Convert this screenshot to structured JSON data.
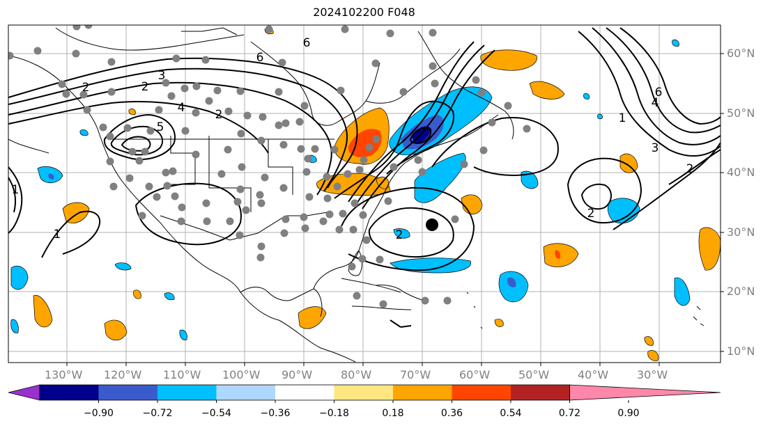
{
  "title": "2024102200 F048",
  "map": {
    "lon_ticks": [
      "130°W",
      "120°W",
      "110°W",
      "100°W",
      "90°W",
      "80°W",
      "70°W",
      "60°W",
      "50°W",
      "40°W",
      "30°W"
    ],
    "lat_ticks": [
      "60°N",
      "50°N",
      "40°N",
      "30°N",
      "20°N",
      "10°N"
    ],
    "contour_labels": [
      "6",
      "2",
      "3",
      "4",
      "5",
      "2",
      "6",
      "1",
      "1",
      "2",
      "2",
      "1",
      "3",
      "4",
      "6",
      "2",
      "2"
    ],
    "colors": {
      "coast": "#000000",
      "grid": "#b0b0b0",
      "contour": "#000000",
      "station_dot": "#808080",
      "center_dot": "#000000"
    }
  },
  "colorbar": {
    "tick_labels": [
      "−0.90",
      "−0.72",
      "−0.54",
      "−0.36",
      "−0.18",
      "0.18",
      "0.36",
      "0.54",
      "0.72",
      "0.90"
    ],
    "colors": [
      "#9932CC",
      "#00008B",
      "#3A5BCC",
      "#00BFFF",
      "#ADD8FF",
      "#FFFFFF",
      "#FFE680",
      "#FFA500",
      "#FF4500",
      "#B22222",
      "#FF88AA"
    ]
  }
}
